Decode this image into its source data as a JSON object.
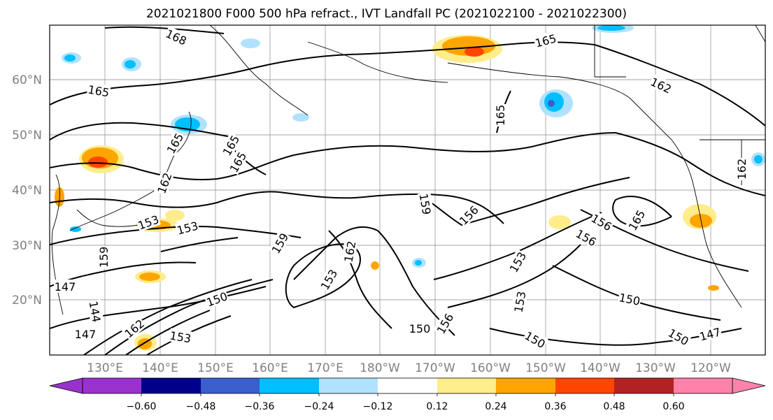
{
  "title": "2021021800 F000 500 hPa refract., IVT Landfall PC (2021022100 - 2021022300)",
  "map": {
    "lat_labels": [
      "60°N",
      "50°N",
      "40°N",
      "30°N",
      "20°N"
    ],
    "lon_labels": [
      "130°E",
      "140°E",
      "150°E",
      "160°E",
      "170°E",
      "180°W",
      "170°W",
      "160°W",
      "150°W",
      "140°W",
      "130°W",
      "120°W"
    ],
    "label_color": "#808080",
    "contour_labels": [
      "168",
      "165",
      "165",
      "165",
      "165",
      "162",
      "165",
      "162",
      "165",
      "159",
      "156",
      "153",
      "153",
      "150",
      "156",
      "153",
      "147",
      "144",
      "147",
      "150",
      "153",
      "156",
      "150",
      "153",
      "150",
      "147",
      "159",
      "162",
      "150",
      "162",
      "162",
      "165",
      "156",
      "159",
      "153"
    ]
  },
  "colorbar": {
    "ticks": [
      "−0.60",
      "−0.48",
      "−0.36",
      "−0.24",
      "−0.12",
      "0.12",
      "0.24",
      "0.36",
      "0.48",
      "0.60"
    ],
    "colors": [
      "#9932CC",
      "#00008B",
      "#3A5FCD",
      "#00BFFF",
      "#B0E2FF",
      "#FFFFFF",
      "#FFEC8B",
      "#FFA500",
      "#FF4500",
      "#B22222",
      "#FF82AB"
    ]
  }
}
